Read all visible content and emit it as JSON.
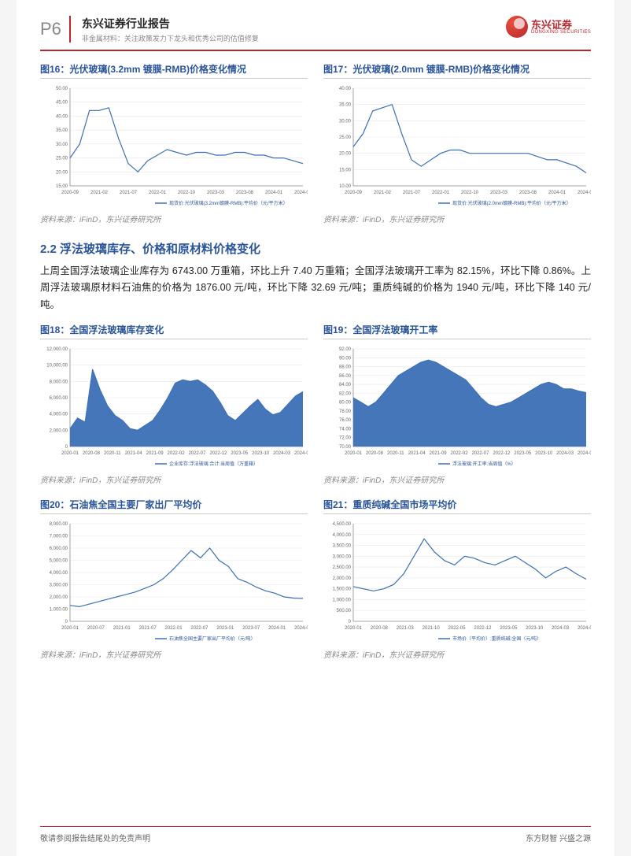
{
  "header": {
    "page_num": "P6",
    "title": "东兴证券行业报告",
    "subtitle": "非金属材料：关注政策发力下龙头和优秀公司的估值修复",
    "logo_cn": "东兴证券",
    "logo_en": "DONGXING SECURITIES"
  },
  "colors": {
    "brand_red": "#b8292f",
    "heading_blue": "#2a5599",
    "line_blue": "#3b6fb5",
    "area_fill": "#3b6fb5",
    "grid": "#e8e8e8",
    "axis": "#888"
  },
  "section": {
    "heading": "2.2 浮法玻璃库存、价格和原材料价格变化",
    "body": "上周全国浮法玻璃企业库存为 6743.00 万重箱，环比上升 7.40 万重箱；全国浮法玻璃开工率为 82.15%，环比下降 0.86%。上周浮法玻璃原材料石油焦的价格为 1876.00 元/吨，环比下降 32.69 元/吨；重质纯碱的价格为 1940 元/吨，环比下降 140 元/吨。"
  },
  "source_text": "资料来源：iFinD，东兴证券研究所",
  "footer": {
    "left": "敬请参阅报告结尾处的免责声明",
    "right": "东方财智 兴盛之源"
  },
  "charts": {
    "c16": {
      "type": "line",
      "title": "图16：光伏玻璃(3.2mm 镀膜-RMB)价格变化情况",
      "legend": "现货价:光伏玻璃(3.2mm镀膜-RMB):平均价（元/平方米）",
      "xlim": [
        "2020-09",
        "2024-06"
      ],
      "xticks": [
        "2020-09",
        "2021-02",
        "2021-07",
        "2022-01",
        "2022-10",
        "2023-03",
        "2023-08",
        "2024-01",
        "2024-06"
      ],
      "ylim": [
        15,
        50
      ],
      "ytick_step": 5,
      "yticks": [
        "15.00",
        "20.00",
        "25.00",
        "30.00",
        "35.00",
        "40.00",
        "45.00",
        "50.00"
      ],
      "line_color": "#3b6fb5",
      "line_width": 1.2,
      "background_color": "#ffffff",
      "values": [
        25,
        30,
        42,
        42,
        43,
        32,
        23,
        20,
        24,
        26,
        28,
        27,
        26,
        27,
        27,
        26,
        26,
        27,
        27,
        26,
        26,
        25,
        25,
        24,
        23
      ]
    },
    "c17": {
      "type": "line",
      "title": "图17：光伏玻璃(2.0mm 镀膜-RMB)价格变化情况",
      "legend": "现货价:光伏玻璃(2.0mm镀膜-RMB):平均价（元/平方米）",
      "xlim": [
        "2020-09",
        "2024-06"
      ],
      "xticks": [
        "2020-09",
        "2021-02",
        "2021-07",
        "2022-01",
        "2022-10",
        "2023-03",
        "2023-08",
        "2024-01",
        "2024-06"
      ],
      "ylim": [
        10,
        40
      ],
      "ytick_step": 5,
      "yticks": [
        "10.00",
        "15.00",
        "20.00",
        "25.00",
        "30.00",
        "35.00",
        "40.00"
      ],
      "line_color": "#3b6fb5",
      "line_width": 1.2,
      "background_color": "#ffffff",
      "values": [
        22,
        26,
        33,
        34,
        35,
        26,
        18,
        16,
        18,
        20,
        21,
        21,
        20,
        20,
        20,
        20,
        20,
        20,
        20,
        19,
        18,
        18,
        17,
        16,
        14
      ]
    },
    "c18": {
      "type": "area",
      "title": "图18：全国浮法玻璃库存变化",
      "legend": "企业库存:浮法玻璃:合计:当周值（万重箱）",
      "xlim": [
        "2020-01",
        "2024-08"
      ],
      "xticks": [
        "2020-01",
        "2020-08",
        "2020-11",
        "2021-04",
        "2021-09",
        "2022-02",
        "2022-07",
        "2022-12",
        "2023-05",
        "2023-10",
        "2024-03",
        "2024-08"
      ],
      "ylim": [
        0,
        12000
      ],
      "ytick_step": 2000,
      "yticks": [
        "0",
        "2,000.00",
        "4,000.00",
        "6,000.00",
        "8,000.00",
        "10,000.00",
        "12,000.00"
      ],
      "fill_color": "#3b6fb5",
      "fill_opacity": 0.95,
      "background_color": "#ffffff",
      "values": [
        2200,
        3500,
        3000,
        9500,
        7000,
        5000,
        3800,
        3200,
        2200,
        2000,
        2600,
        3200,
        4500,
        6000,
        7800,
        8200,
        8000,
        8200,
        7600,
        6800,
        5400,
        3800,
        3200,
        4100,
        5000,
        5800,
        4600,
        3900,
        4200,
        5200,
        6200,
        6743
      ]
    },
    "c19": {
      "type": "area",
      "title": "图19：全国浮法玻璃开工率",
      "legend": "浮法玻璃:开工率:当周值（%）",
      "xlim": [
        "2020-01",
        "2024-08"
      ],
      "xticks": [
        "2020-01",
        "2020-08",
        "2020-11",
        "2021-04",
        "2021-09",
        "2022-02",
        "2022-07",
        "2022-12",
        "2023-05",
        "2023-10",
        "2024-03",
        "2024-08"
      ],
      "ylim": [
        70,
        92
      ],
      "ytick_step": 2,
      "yticks": [
        "70.00",
        "72.00",
        "74.00",
        "76.00",
        "78.00",
        "80.00",
        "82.00",
        "84.00",
        "86.00",
        "88.00",
        "90.00",
        "92.00"
      ],
      "fill_color": "#3b6fb5",
      "fill_opacity": 0.95,
      "background_color": "#ffffff",
      "baseline": 70,
      "values": [
        81,
        80,
        79,
        80,
        82,
        84,
        86,
        87,
        88,
        89,
        89.5,
        89,
        88,
        87,
        86,
        85,
        83,
        81,
        79.5,
        79,
        79.5,
        80,
        81,
        82,
        83,
        84,
        84.5,
        84,
        83,
        83,
        82.5,
        82.15
      ]
    },
    "c20": {
      "type": "line",
      "title": "图20：石油焦全国主要厂家出厂平均价",
      "legend": "石油焦全国主要厂家出厂平均价（元/吨）",
      "xlim": [
        "2020-01",
        "2024-07"
      ],
      "xticks": [
        "2020-01",
        "2020-07",
        "2021-01",
        "2021-07",
        "2022-01",
        "2022-07",
        "2023-01",
        "2023-07",
        "2024-01",
        "2024-07"
      ],
      "ylim": [
        0,
        8000
      ],
      "ytick_step": 1000,
      "yticks": [
        "0",
        "1,000.00",
        "2,000.00",
        "3,000.00",
        "4,000.00",
        "5,000.00",
        "6,000.00",
        "7,000.00",
        "8,000.00"
      ],
      "line_color": "#3b6fb5",
      "line_width": 1.2,
      "background_color": "#ffffff",
      "values": [
        1300,
        1200,
        1400,
        1600,
        1800,
        2000,
        2200,
        2400,
        2700,
        3000,
        3500,
        4200,
        5000,
        5800,
        5200,
        6000,
        5000,
        4500,
        3500,
        3200,
        2800,
        2500,
        2300,
        2000,
        1900,
        1876
      ]
    },
    "c21": {
      "type": "line",
      "title": "图21：重质纯碱全国市场平均价",
      "legend": "市场价（平均价）:重质纯碱:全国（元/吨）",
      "xlim": [
        "2020-01",
        "2024-08"
      ],
      "xticks": [
        "2020-01",
        "2020-08",
        "2021-03",
        "2021-10",
        "2022-05",
        "2022-12",
        "2023-05",
        "2023-10",
        "2024-03",
        "2024-08"
      ],
      "ylim": [
        0,
        4500
      ],
      "ytick_step": 500,
      "yticks": [
        "0",
        "500.00",
        "1,000.00",
        "1,500.00",
        "2,000.00",
        "2,500.00",
        "3,000.00",
        "3,500.00",
        "4,000.00",
        "4,500.00"
      ],
      "line_color": "#3b6fb5",
      "line_width": 1.2,
      "background_color": "#ffffff",
      "values": [
        1600,
        1500,
        1400,
        1500,
        1700,
        2200,
        3000,
        3800,
        3200,
        2800,
        2600,
        3000,
        2900,
        2700,
        2600,
        2800,
        3000,
        2700,
        2400,
        2000,
        2300,
        2500,
        2200,
        1940
      ]
    }
  }
}
